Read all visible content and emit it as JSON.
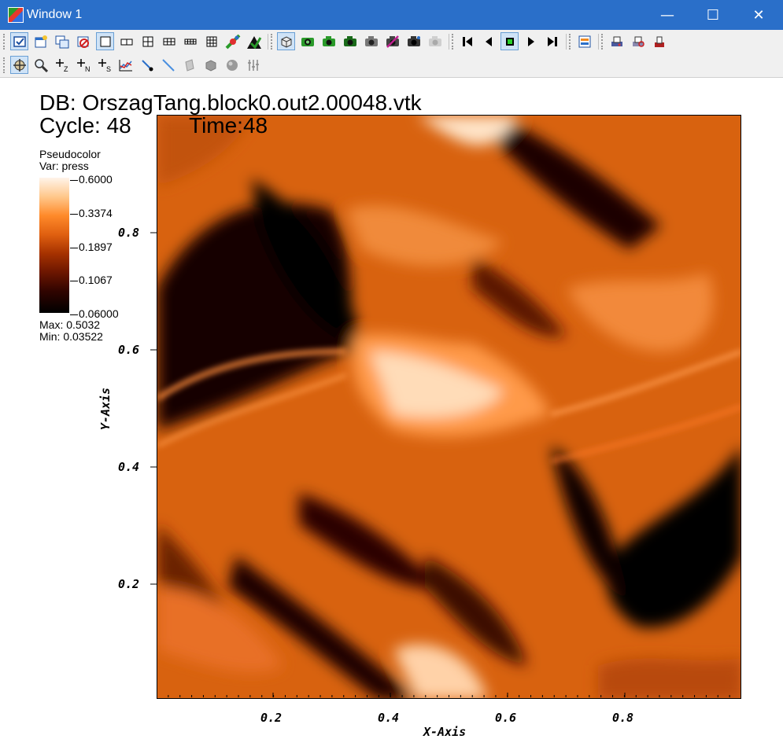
{
  "window": {
    "title": "Window 1",
    "minimize_glyph": "—",
    "maximize_glyph": "☐",
    "close_glyph": "✕"
  },
  "toolbar_icons": {
    "row1": [
      "active-window-icon",
      "new-window-icon",
      "clone-window-icon",
      "delete-window-icon",
      "layout-1x1-icon",
      "layout-1x2-icon",
      "layout-2x2-icon",
      "layout-2x3-icon",
      "layout-2x4-icon",
      "layout-3x3-icon",
      "lock-view-icon",
      "lock-time-icon",
      "spin-mode-icon",
      "invert-background-icon",
      "camera-icon",
      "camera-icon",
      "camera-icon",
      "camera-icon",
      "camera-icon",
      "camera-icon",
      "prev-frame-icon",
      "reverse-play-icon",
      "stop-icon",
      "play-icon",
      "next-frame-icon",
      "plot-list-icon",
      "print-icon",
      "print-setup-icon",
      "save-icon"
    ],
    "row2": [
      "navigate-icon",
      "zoom-icon",
      "zone-pick-icon",
      "node-pick-icon",
      "spreadsheet-pick-icon",
      "lineout-icon",
      "point-tool-icon",
      "line-tool-icon",
      "plane-tool-icon",
      "box-tool-icon",
      "sphere-tool-icon",
      "axis-array-icon"
    ]
  },
  "plot": {
    "db_line": "DB: OrszagTang.block0.out2.00048.vtk",
    "cycle_line": "Cycle: 48",
    "time_line": "Time:48"
  },
  "legend": {
    "plot_type": "Pseudocolor",
    "var_line": "Var: press",
    "ticks": [
      "0.6000",
      "0.3374",
      "0.1897",
      "0.1067",
      "0.06000"
    ],
    "max_line": "Max:  0.5032",
    "min_line": "Min:  0.03522",
    "colors": [
      "#fff4ea",
      "#ffc88c",
      "#ff8a2a",
      "#a63200",
      "#000000"
    ]
  },
  "axes": {
    "x_title": "X-Axis",
    "y_title": "Y-Axis",
    "x_ticks": [
      "0.2",
      "0.4",
      "0.6",
      "0.8"
    ],
    "y_ticks": [
      "0.8",
      "0.6",
      "0.4",
      "0.2"
    ]
  }
}
